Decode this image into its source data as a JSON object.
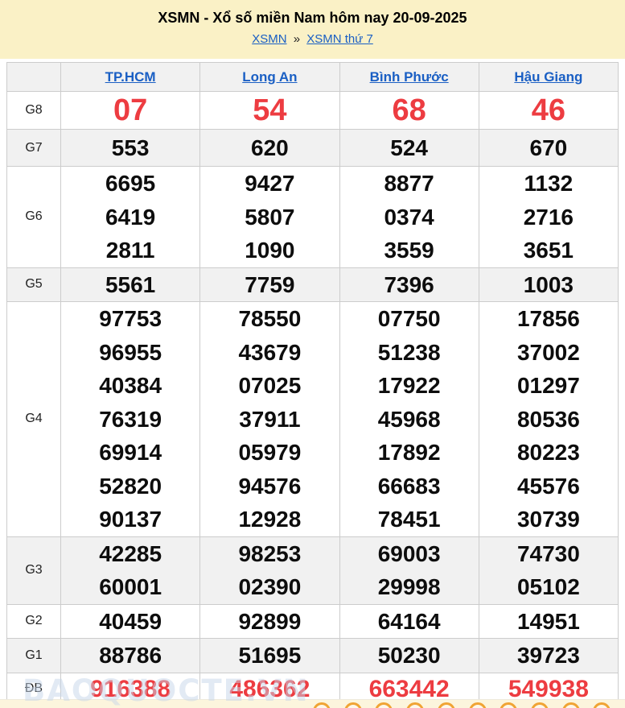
{
  "header": {
    "title": "XSMN - Xổ số miền Nam hôm nay 20-09-2025",
    "breadcrumb": {
      "link1": "XSMN",
      "separator": "»",
      "link2": "XSMN thứ 7"
    }
  },
  "table": {
    "columns": [
      "TP.HCM",
      "Long An",
      "Bình Phước",
      "Hậu Giang"
    ],
    "rows": [
      {
        "label": "G8",
        "style": "red-large",
        "alt": false,
        "cells": [
          [
            "07"
          ],
          [
            "54"
          ],
          [
            "68"
          ],
          [
            "46"
          ]
        ]
      },
      {
        "label": "G7",
        "style": "row-g7",
        "alt": true,
        "cells": [
          [
            "553"
          ],
          [
            "620"
          ],
          [
            "524"
          ],
          [
            "670"
          ]
        ]
      },
      {
        "label": "G6",
        "style": "",
        "alt": false,
        "cells": [
          [
            "6695",
            "6419",
            "2811"
          ],
          [
            "9427",
            "5807",
            "1090"
          ],
          [
            "8877",
            "0374",
            "3559"
          ],
          [
            "1132",
            "2716",
            "3651"
          ]
        ]
      },
      {
        "label": "G5",
        "style": "",
        "alt": true,
        "cells": [
          [
            "5561"
          ],
          [
            "7759"
          ],
          [
            "7396"
          ],
          [
            "1003"
          ]
        ]
      },
      {
        "label": "G4",
        "style": "",
        "alt": false,
        "cells": [
          [
            "97753",
            "96955",
            "40384",
            "76319",
            "69914",
            "52820",
            "90137"
          ],
          [
            "78550",
            "43679",
            "07025",
            "37911",
            "05979",
            "94576",
            "12928"
          ],
          [
            "07750",
            "51238",
            "17922",
            "45968",
            "17892",
            "66683",
            "78451"
          ],
          [
            "17856",
            "37002",
            "01297",
            "80536",
            "80223",
            "45576",
            "30739"
          ]
        ]
      },
      {
        "label": "G3",
        "style": "",
        "alt": true,
        "cells": [
          [
            "42285",
            "60001"
          ],
          [
            "98253",
            "02390"
          ],
          [
            "69003",
            "29998"
          ],
          [
            "74730",
            "05102"
          ]
        ]
      },
      {
        "label": "G2",
        "style": "",
        "alt": false,
        "cells": [
          [
            "40459"
          ],
          [
            "92899"
          ],
          [
            "64164"
          ],
          [
            "14951"
          ]
        ]
      },
      {
        "label": "G1",
        "style": "",
        "alt": true,
        "cells": [
          [
            "88786"
          ],
          [
            "51695"
          ],
          [
            "50230"
          ],
          [
            "39723"
          ]
        ]
      },
      {
        "label": "ĐB",
        "style": "red-medium",
        "alt": false,
        "cells": [
          [
            "916388"
          ],
          [
            "486362"
          ],
          [
            "663442"
          ],
          [
            "549938"
          ]
        ]
      }
    ]
  },
  "watermark": "BAOQUOCTE.VN",
  "colors": {
    "accent_red": "#ed3c41",
    "link_blue": "#1a5fc4",
    "header_yellow": "#faf1c6",
    "row_gray": "#f1f1f1",
    "ball_orange": "#f0a434"
  }
}
